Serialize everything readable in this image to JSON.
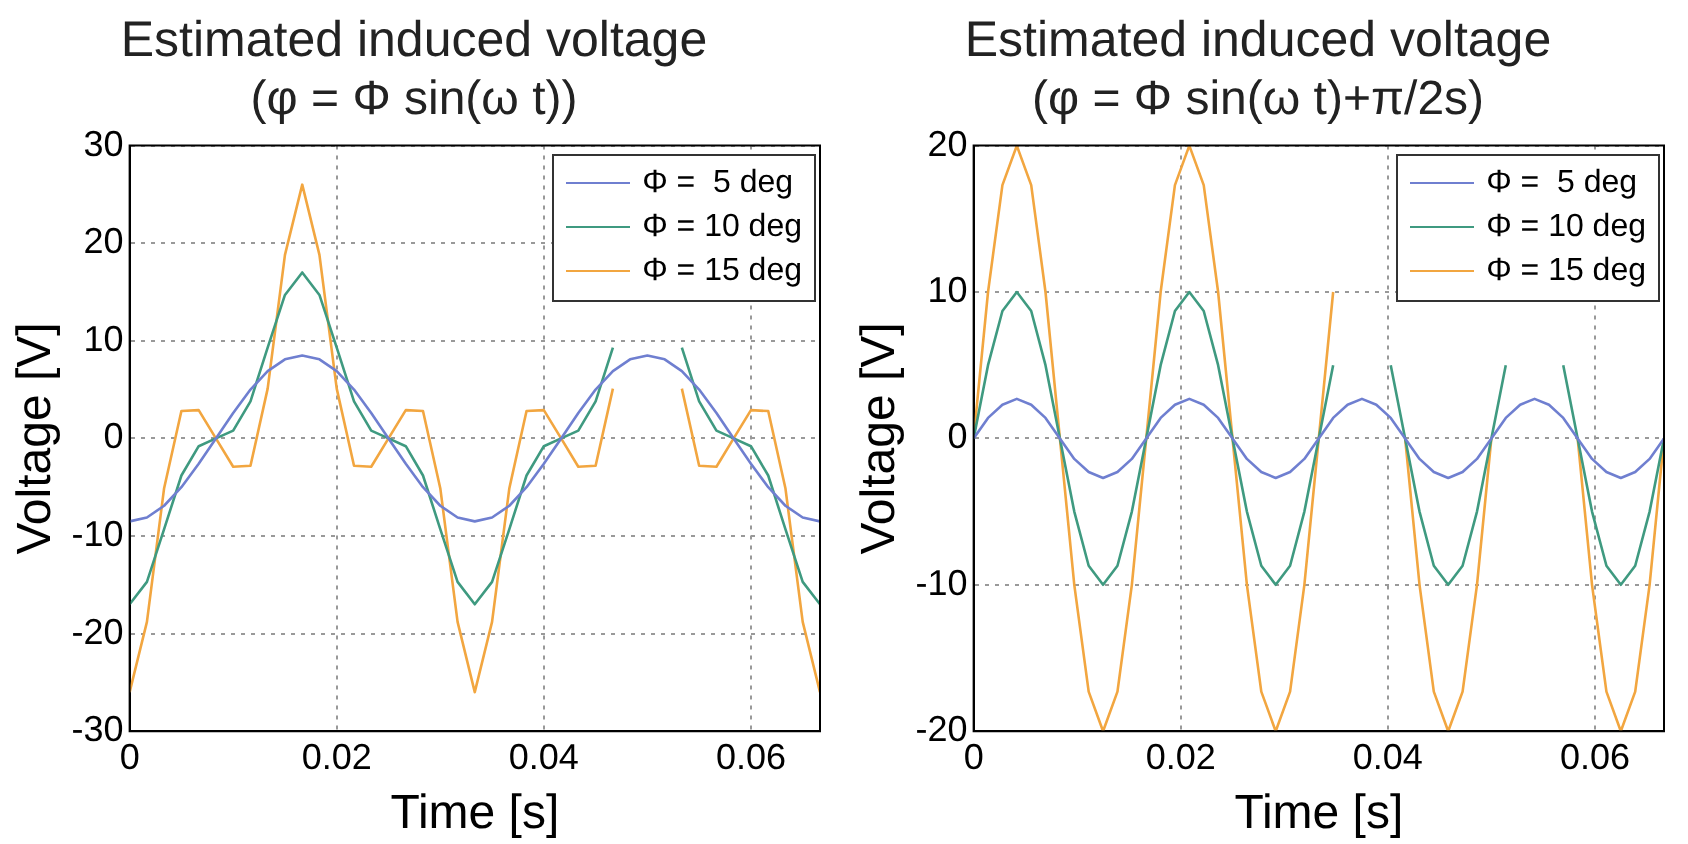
{
  "chart_data": [
    {
      "type": "line",
      "title": "Estimated induced voltage",
      "subtitle": "(φ = Φ sin(ω t))",
      "xlabel": "Time [s]",
      "ylabel": "Voltage [V]",
      "x": [
        0,
        0.00167,
        0.00333,
        0.005,
        0.00667,
        0.00833,
        0.01,
        0.01167,
        0.01333,
        0.015,
        0.01667,
        0.01833,
        0.02,
        0.02167,
        0.02333,
        0.025,
        0.02667,
        0.02833,
        0.03,
        0.03167,
        0.03333,
        0.035,
        0.03667,
        0.03833,
        0.04,
        0.04167,
        0.04333,
        0.045,
        0.04667,
        0.04833,
        0.05,
        0.05167,
        0.05333,
        0.055,
        0.05667,
        0.05833,
        0.06,
        0.06167,
        0.06333,
        0.065,
        0.06667
      ],
      "series": [
        {
          "name": "Φ =  5 deg",
          "color": "#6f7fd0",
          "values": [
            -8.5,
            -8.1,
            -6.9,
            -5,
            -2.6,
            0,
            2.6,
            5,
            6.9,
            8.1,
            8.5,
            8.1,
            6.9,
            5,
            2.6,
            0,
            -2.6,
            -5,
            -6.9,
            -8.1,
            -8.5,
            -8.1,
            -6.9,
            -5,
            -2.6,
            0,
            2.6,
            5,
            6.9,
            8.1,
            8.5,
            8.1,
            6.9,
            5,
            2.6,
            0,
            -2.6,
            -5,
            -6.9,
            -8.1,
            -8.5
          ]
        },
        {
          "name": "Φ = 10 deg",
          "color": "#3f9a80",
          "values": [
            -17,
            -14.7,
            -9.3,
            -3.8,
            -0.8,
            0,
            0.8,
            3.8,
            9.3,
            14.7,
            17,
            14.7,
            9.3,
            3.8,
            0.8,
            0,
            -0.8,
            -3.8,
            -9.3,
            -14.7,
            -17,
            -14.7,
            -9.3,
            -3.8,
            -0.8,
            0,
            0.8,
            3.8,
            9.3,
            null,
            null,
            null,
            9.3,
            3.8,
            0.8,
            0,
            -0.8,
            -3.8,
            -9.3,
            -14.7,
            -17
          ]
        },
        {
          "name": "Φ = 15 deg",
          "color": "#f2a640",
          "values": [
            -26,
            -18.8,
            -5.1,
            2.8,
            2.9,
            0,
            -2.9,
            -2.8,
            5.1,
            18.8,
            26,
            18.8,
            5.1,
            -2.8,
            -2.9,
            0,
            2.9,
            2.8,
            -5.1,
            -18.8,
            -26,
            -18.8,
            -5.1,
            2.8,
            2.9,
            0,
            -2.9,
            -2.8,
            5.1,
            null,
            null,
            null,
            5.1,
            -2.8,
            -2.9,
            0,
            2.9,
            2.8,
            -5.1,
            -18.8,
            -26
          ]
        }
      ],
      "xlim": [
        0,
        0.06667
      ],
      "xticks": [
        0,
        0.02,
        0.04,
        0.06
      ],
      "ylim": [
        -30,
        30
      ],
      "yticks": [
        -30,
        -20,
        -10,
        0,
        10,
        20,
        30
      ],
      "grid": true,
      "legend": "top right"
    },
    {
      "type": "line",
      "title": "Estimated induced voltage",
      "subtitle": "(φ = Φ sin(ω t)+π/2s)",
      "xlabel": "Time [s]",
      "ylabel": "Voltage [V]",
      "x": [
        0,
        0.00139,
        0.00278,
        0.00417,
        0.00556,
        0.00694,
        0.00833,
        0.00972,
        0.01111,
        0.0125,
        0.01389,
        0.01528,
        0.01667,
        0.01806,
        0.01944,
        0.02083,
        0.02222,
        0.02361,
        0.025,
        0.02639,
        0.02778,
        0.02917,
        0.03056,
        0.03194,
        0.03333,
        0.03472,
        0.03611,
        0.0375,
        0.03889,
        0.04028,
        0.04167,
        0.04306,
        0.04444,
        0.04583,
        0.04722,
        0.04861,
        0.05,
        0.05139,
        0.05278,
        0.05417,
        0.05556,
        0.05694,
        0.05833,
        0.05972,
        0.06111,
        0.0625,
        0.06389,
        0.06528,
        0.06667
      ],
      "series": [
        {
          "name": "Φ =  5 deg",
          "color": "#6f7fd0",
          "values": [
            0,
            1.4,
            2.3,
            2.7,
            2.3,
            1.4,
            0,
            -1.4,
            -2.3,
            -2.7,
            -2.3,
            -1.4,
            0,
            1.4,
            2.3,
            2.7,
            2.3,
            1.4,
            0,
            -1.4,
            -2.3,
            -2.7,
            -2.3,
            -1.4,
            0,
            1.4,
            2.3,
            2.7,
            2.3,
            1.4,
            0,
            -1.4,
            -2.3,
            -2.7,
            -2.3,
            -1.4,
            0,
            1.4,
            2.3,
            2.7,
            2.3,
            1.4,
            0,
            -1.4,
            -2.3,
            -2.7,
            -2.3,
            -1.4,
            0
          ]
        },
        {
          "name": "Φ = 10 deg",
          "color": "#3f9a80",
          "values": [
            0,
            5,
            8.7,
            10,
            8.7,
            5,
            0,
            -5,
            -8.7,
            -10,
            -8.7,
            -5,
            0,
            5,
            8.7,
            10,
            8.7,
            5,
            0,
            -5,
            -8.7,
            -10,
            -8.7,
            -5,
            0,
            5,
            null,
            null,
            null,
            5,
            0,
            -5,
            -8.7,
            -10,
            -8.7,
            -5,
            0,
            5,
            null,
            null,
            null,
            5,
            0,
            -5,
            -8.7,
            -10,
            -8.7,
            -5,
            0
          ]
        },
        {
          "name": "Φ = 15 deg",
          "color": "#f2a640",
          "values": [
            0,
            10,
            17.3,
            20,
            17.3,
            10,
            0,
            -10,
            -17.3,
            -20,
            -17.3,
            -10,
            0,
            10,
            17.3,
            20,
            17.3,
            10,
            0,
            -10,
            -17.3,
            -20,
            -17.3,
            -10,
            0,
            10,
            null,
            null,
            null,
            null,
            0,
            -10,
            -17.3,
            -20,
            -17.3,
            -10,
            0,
            null,
            null,
            null,
            null,
            null,
            0,
            -10,
            -17.3,
            -20,
            -17.3,
            -10,
            0
          ]
        }
      ],
      "xlim": [
        0,
        0.06667
      ],
      "xticks": [
        0,
        0.02,
        0.04,
        0.06
      ],
      "ylim": [
        -20,
        20
      ],
      "yticks": [
        -20,
        -10,
        0,
        10,
        20
      ],
      "grid": true,
      "legend": "top right"
    }
  ]
}
